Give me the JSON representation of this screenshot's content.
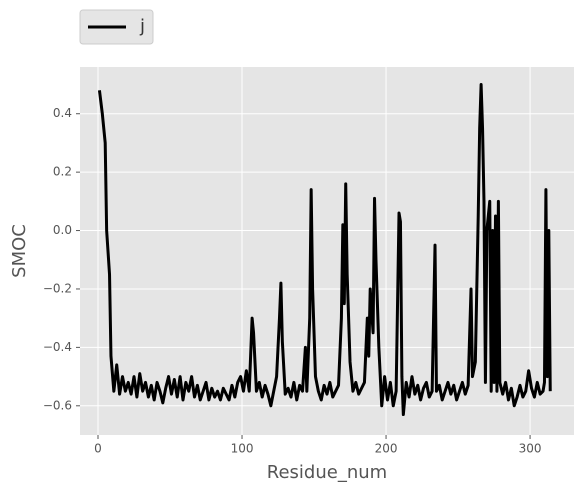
{
  "chart_data": {
    "type": "line",
    "xlabel": "Residue_num",
    "ylabel": "SMOC",
    "x": [
      1,
      3,
      5,
      6,
      8,
      9,
      11,
      13,
      15,
      17,
      19,
      21,
      23,
      25,
      27,
      29,
      31,
      33,
      35,
      37,
      39,
      41,
      43,
      45,
      47,
      49,
      51,
      53,
      55,
      57,
      59,
      61,
      63,
      65,
      67,
      69,
      71,
      73,
      75,
      77,
      79,
      81,
      83,
      85,
      87,
      89,
      91,
      93,
      95,
      97,
      99,
      101,
      103,
      105,
      107,
      108,
      110,
      112,
      114,
      116,
      118,
      120,
      122,
      124,
      126,
      127,
      128,
      130,
      132,
      134,
      136,
      138,
      140,
      142,
      144,
      145,
      147,
      148,
      149,
      151,
      153,
      155,
      157,
      159,
      161,
      163,
      165,
      167,
      169,
      170,
      171,
      172,
      173,
      175,
      177,
      179,
      181,
      183,
      185,
      187,
      188,
      189,
      191,
      192,
      193,
      195,
      197,
      199,
      201,
      203,
      205,
      207,
      209,
      210,
      211,
      212,
      214,
      216,
      218,
      220,
      222,
      224,
      226,
      228,
      230,
      232,
      234,
      235,
      237,
      239,
      241,
      243,
      245,
      247,
      249,
      251,
      253,
      255,
      257,
      259,
      260,
      262,
      263,
      264,
      265,
      266,
      267,
      268,
      269,
      270,
      271,
      272,
      273,
      274,
      275,
      276,
      277,
      278,
      279,
      281,
      283,
      285,
      287,
      289,
      291,
      293,
      295,
      297,
      299,
      301,
      303,
      305,
      307,
      309,
      310,
      311,
      312,
      313,
      314
    ],
    "series": [
      {
        "name": "j",
        "color": "#000000",
        "values": [
          0.48,
          0.4,
          0.3,
          0.0,
          -0.15,
          -0.43,
          -0.55,
          -0.46,
          -0.56,
          -0.5,
          -0.55,
          -0.52,
          -0.56,
          -0.5,
          -0.57,
          -0.49,
          -0.55,
          -0.52,
          -0.57,
          -0.53,
          -0.58,
          -0.52,
          -0.55,
          -0.59,
          -0.54,
          -0.5,
          -0.56,
          -0.51,
          -0.57,
          -0.5,
          -0.58,
          -0.52,
          -0.55,
          -0.5,
          -0.57,
          -0.53,
          -0.58,
          -0.55,
          -0.52,
          -0.58,
          -0.54,
          -0.57,
          -0.55,
          -0.58,
          -0.54,
          -0.56,
          -0.58,
          -0.53,
          -0.57,
          -0.52,
          -0.5,
          -0.55,
          -0.48,
          -0.55,
          -0.3,
          -0.35,
          -0.55,
          -0.52,
          -0.57,
          -0.53,
          -0.56,
          -0.6,
          -0.55,
          -0.5,
          -0.3,
          -0.18,
          -0.38,
          -0.56,
          -0.54,
          -0.57,
          -0.52,
          -0.58,
          -0.53,
          -0.55,
          -0.4,
          -0.55,
          -0.3,
          0.14,
          -0.2,
          -0.5,
          -0.55,
          -0.58,
          -0.53,
          -0.56,
          -0.52,
          -0.57,
          -0.55,
          -0.53,
          -0.3,
          0.02,
          -0.25,
          0.16,
          -0.15,
          -0.45,
          -0.55,
          -0.52,
          -0.56,
          -0.54,
          -0.52,
          -0.3,
          -0.43,
          -0.2,
          -0.35,
          0.11,
          -0.1,
          -0.4,
          -0.6,
          -0.5,
          -0.58,
          -0.52,
          -0.6,
          -0.55,
          0.06,
          0.03,
          -0.5,
          -0.63,
          -0.52,
          -0.57,
          -0.5,
          -0.56,
          -0.53,
          -0.58,
          -0.54,
          -0.52,
          -0.57,
          -0.55,
          -0.05,
          -0.55,
          -0.53,
          -0.58,
          -0.55,
          -0.52,
          -0.56,
          -0.53,
          -0.58,
          -0.55,
          -0.52,
          -0.56,
          -0.53,
          -0.2,
          -0.5,
          -0.45,
          -0.2,
          0.05,
          0.35,
          0.5,
          0.35,
          0.1,
          -0.52,
          0.0,
          0.05,
          0.1,
          -0.55,
          0.0,
          -0.52,
          0.05,
          -0.55,
          0.1,
          -0.52,
          -0.56,
          -0.52,
          -0.58,
          -0.54,
          -0.6,
          -0.57,
          -0.53,
          -0.57,
          -0.55,
          -0.48,
          -0.54,
          -0.57,
          -0.52,
          -0.56,
          -0.55,
          -0.52,
          0.14,
          -0.5,
          0.0,
          -0.55
        ]
      }
    ],
    "xlim": [
      -12.5,
      330.5
    ],
    "xticks": [
      0,
      100,
      200,
      300
    ],
    "ylim": [
      -0.7,
      0.56
    ],
    "yticks": [
      {
        "value": -0.6,
        "label": "−0.6"
      },
      {
        "value": -0.4,
        "label": "−0.4"
      },
      {
        "value": -0.2,
        "label": "−0.2"
      },
      {
        "value": 0,
        "label": "0.0"
      },
      {
        "value": 0.2,
        "label": "0.2"
      },
      {
        "value": 0.4,
        "label": "0.4"
      }
    ],
    "grid": true,
    "legend": "top-left"
  }
}
